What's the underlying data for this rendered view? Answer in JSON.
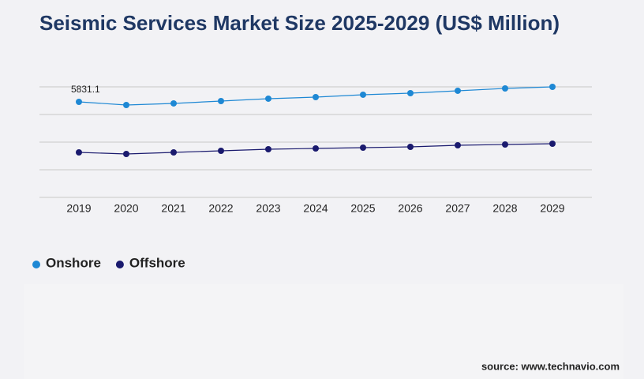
{
  "chart_data": {
    "type": "line",
    "title": "Seismic Services Market Size 2025-2029 (US$ Million)",
    "source": "source: www.technavio.com",
    "categories": [
      "2019",
      "2020",
      "2021",
      "2022",
      "2023",
      "2024",
      "2025",
      "2026",
      "2027",
      "2028",
      "2029"
    ],
    "series": [
      {
        "name": "Onshore",
        "color": "#1e88d4",
        "values": [
          5831.1,
          5638,
          5735,
          5879,
          6024,
          6120,
          6265,
          6361,
          6506,
          6650,
          6746
        ]
      },
      {
        "name": "Offshore",
        "color": "#1a1a6e",
        "values": [
          2747,
          2650,
          2747,
          2843,
          2940,
          2988,
          3036,
          3084,
          3181,
          3229,
          3277
        ]
      }
    ],
    "ylim": [
      0,
      6746
    ],
    "yticks": [
      0,
      1686.5,
      3373,
      5059.5,
      6746
    ],
    "grid": true
  }
}
